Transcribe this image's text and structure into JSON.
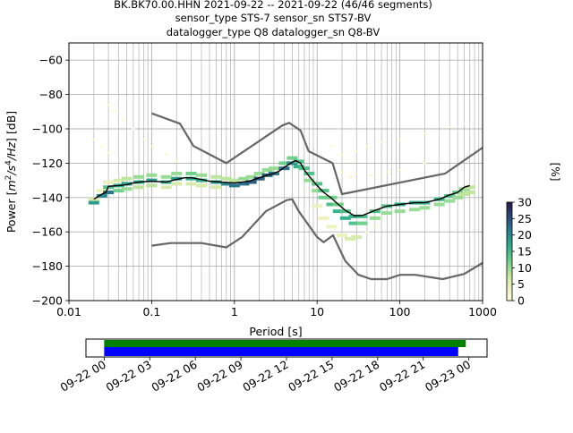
{
  "chart_data": {
    "type": "heatmap",
    "title_lines": [
      "BK.BK70.00.HHN   2021-09-22 -- 2021-09-22  (46/46 segments)",
      "sensor_type STS-7 sensor_sn STS7-BV",
      "datalogger_type Q8 datalogger_sn Q8-BV"
    ],
    "xlabel": "Period [s]",
    "ylabel": "Power [m²/s⁴/Hz] [dB]",
    "ylabel_parts": {
      "a": "Power [",
      "b": "m",
      "c": "2",
      "d": "/s",
      "e": "4",
      "f": "/Hz",
      "g": "] [dB]"
    },
    "x_scale": "log",
    "xlim": [
      0.01,
      1000
    ],
    "ylim": [
      -200,
      -50
    ],
    "x_ticks": [
      "0.01",
      "0.1",
      "1",
      "10",
      "100",
      "1000"
    ],
    "y_ticks": [
      "−60",
      "−80",
      "−100",
      "−120",
      "−140",
      "−160",
      "−180",
      "−200"
    ],
    "y_tick_values": [
      -60,
      -80,
      -100,
      -120,
      -140,
      -160,
      -180,
      -200
    ],
    "x_tick_values": [
      0.01,
      0.1,
      1,
      10,
      100,
      1000
    ],
    "grid": true,
    "colorbar": {
      "label": "[%]",
      "min": 0,
      "max": 30,
      "ticks": [
        "0",
        "5",
        "10",
        "15",
        "20",
        "25",
        "30"
      ],
      "tick_values": [
        0,
        5,
        10,
        15,
        20,
        25,
        30
      ]
    },
    "nhnm": [
      [
        0.1,
        -91
      ],
      [
        0.22,
        -97
      ],
      [
        0.32,
        -110
      ],
      [
        0.8,
        -120
      ],
      [
        3.8,
        -98
      ],
      [
        4.6,
        -96.5
      ],
      [
        6.3,
        -101
      ],
      [
        7.9,
        -113
      ],
      [
        15.4,
        -120
      ],
      [
        20,
        -138
      ],
      [
        354,
        -126
      ],
      [
        1000,
        -111
      ]
    ],
    "nlnm": [
      [
        0.1,
        -168
      ],
      [
        0.17,
        -166.5
      ],
      [
        0.4,
        -166.5
      ],
      [
        0.8,
        -169
      ],
      [
        1.24,
        -163
      ],
      [
        2.4,
        -148
      ],
      [
        4.3,
        -141.5
      ],
      [
        5,
        -141
      ],
      [
        6,
        -148
      ],
      [
        10,
        -163
      ],
      [
        12,
        -166
      ],
      [
        15.6,
        -162
      ],
      [
        21.9,
        -177
      ],
      [
        31.6,
        -185
      ],
      [
        45,
        -187.5
      ],
      [
        70,
        -187.5
      ],
      [
        101,
        -185
      ],
      [
        154,
        -185
      ],
      [
        328,
        -187.5
      ],
      [
        600,
        -184.5
      ],
      [
        1000,
        -178
      ]
    ],
    "mean": [
      [
        0.02,
        -141
      ],
      [
        0.025,
        -138
      ],
      [
        0.028,
        -137
      ],
      [
        0.03,
        -133.5
      ],
      [
        0.04,
        -133
      ],
      [
        0.05,
        -132.5
      ],
      [
        0.06,
        -131.5
      ],
      [
        0.07,
        -131
      ],
      [
        0.1,
        -130.5
      ],
      [
        0.15,
        -131
      ],
      [
        0.2,
        -129.5
      ],
      [
        0.25,
        -128.5
      ],
      [
        0.3,
        -128.5
      ],
      [
        0.4,
        -129.5
      ],
      [
        0.5,
        -130.5
      ],
      [
        0.7,
        -131
      ],
      [
        1,
        -131.5
      ],
      [
        1.5,
        -130.5
      ],
      [
        2,
        -128.5
      ],
      [
        2.5,
        -127
      ],
      [
        3,
        -126
      ],
      [
        3.5,
        -124.5
      ],
      [
        4,
        -122.5
      ],
      [
        5,
        -119.5
      ],
      [
        5.5,
        -118.5
      ],
      [
        6.3,
        -120
      ],
      [
        7,
        -124
      ],
      [
        8,
        -127.5
      ],
      [
        10,
        -133
      ],
      [
        12,
        -137
      ],
      [
        15,
        -140.5
      ],
      [
        18,
        -144
      ],
      [
        22,
        -147.5
      ],
      [
        28,
        -150.5
      ],
      [
        35,
        -150.5
      ],
      [
        50,
        -147.5
      ],
      [
        70,
        -145
      ],
      [
        100,
        -144
      ],
      [
        150,
        -143
      ],
      [
        200,
        -143
      ],
      [
        300,
        -141
      ],
      [
        400,
        -138.5
      ],
      [
        500,
        -137
      ],
      [
        600,
        -134
      ],
      [
        700,
        -133
      ]
    ],
    "samples": [
      [
        0.02,
        -141,
        6
      ],
      [
        0.02,
        -143,
        18
      ],
      [
        0.025,
        -136,
        4
      ],
      [
        0.025,
        -139,
        20
      ],
      [
        0.03,
        -131,
        4
      ],
      [
        0.03,
        -134,
        14
      ],
      [
        0.03,
        -137,
        22
      ],
      [
        0.04,
        -130,
        6
      ],
      [
        0.04,
        -133,
        16
      ],
      [
        0.04,
        -136,
        12
      ],
      [
        0.05,
        -129,
        8
      ],
      [
        0.05,
        -132,
        18
      ],
      [
        0.05,
        -135,
        10
      ],
      [
        0.07,
        -128,
        10
      ],
      [
        0.07,
        -131,
        16
      ],
      [
        0.07,
        -134,
        8
      ],
      [
        0.1,
        -127,
        10
      ],
      [
        0.1,
        -130,
        18
      ],
      [
        0.1,
        -133,
        8
      ],
      [
        0.15,
        -128,
        10
      ],
      [
        0.15,
        -131,
        16
      ],
      [
        0.15,
        -134,
        6
      ],
      [
        0.2,
        -126,
        10
      ],
      [
        0.2,
        -129,
        18
      ],
      [
        0.2,
        -132,
        6
      ],
      [
        0.3,
        -126,
        12
      ],
      [
        0.3,
        -129,
        16
      ],
      [
        0.3,
        -132,
        6
      ],
      [
        0.4,
        -127,
        10
      ],
      [
        0.4,
        -130,
        16
      ],
      [
        0.4,
        -133,
        6
      ],
      [
        0.6,
        -128,
        8
      ],
      [
        0.6,
        -131,
        18
      ],
      [
        0.6,
        -134,
        6
      ],
      [
        0.8,
        -129,
        8
      ],
      [
        0.8,
        -132,
        20
      ],
      [
        1,
        -130,
        8
      ],
      [
        1,
        -133,
        22
      ],
      [
        1.3,
        -129,
        10
      ],
      [
        1.3,
        -132,
        22
      ],
      [
        1.6,
        -128,
        10
      ],
      [
        1.6,
        -131,
        24
      ],
      [
        2,
        -126,
        10
      ],
      [
        2,
        -129,
        24
      ],
      [
        2.5,
        -124,
        10
      ],
      [
        2.5,
        -127,
        24
      ],
      [
        3,
        -123,
        10
      ],
      [
        3,
        -126,
        22
      ],
      [
        4,
        -120,
        12
      ],
      [
        4,
        -123,
        22
      ],
      [
        5,
        -117,
        12
      ],
      [
        5,
        -120,
        20
      ],
      [
        6,
        -119,
        14
      ],
      [
        6,
        -122,
        16
      ],
      [
        7,
        -123,
        14
      ],
      [
        8,
        -126,
        14
      ],
      [
        8,
        -130,
        10
      ],
      [
        10,
        -132,
        14
      ],
      [
        10,
        -136,
        10
      ],
      [
        12,
        -136,
        14
      ],
      [
        12,
        -140,
        12
      ],
      [
        15,
        -140,
        12
      ],
      [
        15,
        -144,
        14
      ],
      [
        18,
        -144,
        12
      ],
      [
        18,
        -148,
        16
      ],
      [
        22,
        -148,
        14
      ],
      [
        22,
        -152,
        16
      ],
      [
        28,
        -151,
        16
      ],
      [
        28,
        -155,
        14
      ],
      [
        35,
        -151,
        14
      ],
      [
        35,
        -155,
        12
      ],
      [
        50,
        -148,
        14
      ],
      [
        50,
        -152,
        10
      ],
      [
        70,
        -145,
        14
      ],
      [
        70,
        -149,
        10
      ],
      [
        100,
        -144,
        16
      ],
      [
        100,
        -148,
        10
      ],
      [
        150,
        -143,
        16
      ],
      [
        150,
        -147,
        10
      ],
      [
        200,
        -143,
        16
      ],
      [
        200,
        -146,
        10
      ],
      [
        300,
        -141,
        16
      ],
      [
        300,
        -144,
        10
      ],
      [
        400,
        -139,
        14
      ],
      [
        400,
        -142,
        10
      ],
      [
        500,
        -137,
        12
      ],
      [
        500,
        -140,
        10
      ],
      [
        600,
        -135,
        10
      ],
      [
        600,
        -138,
        8
      ],
      [
        700,
        -134,
        8
      ],
      [
        700,
        -137,
        8
      ],
      [
        0.03,
        -86,
        1
      ],
      [
        0.035,
        -90,
        1
      ],
      [
        0.045,
        -95,
        1
      ],
      [
        0.06,
        -100,
        1
      ],
      [
        0.08,
        -106,
        1
      ],
      [
        0.1,
        -110,
        1
      ],
      [
        0.15,
        -115,
        1
      ],
      [
        0.2,
        -119,
        1
      ],
      [
        0.02,
        -106,
        1
      ],
      [
        0.025,
        -110,
        1
      ],
      [
        0.03,
        -114,
        1
      ],
      [
        15,
        -110,
        1
      ],
      [
        20,
        -115,
        1
      ],
      [
        25,
        -118,
        1
      ],
      [
        30,
        -113,
        1
      ],
      [
        40,
        -110,
        1
      ],
      [
        60,
        -108,
        1
      ],
      [
        100,
        -106,
        1
      ],
      [
        200,
        -103,
        1
      ],
      [
        400,
        -99,
        1
      ],
      [
        600,
        -97,
        1
      ],
      [
        20,
        -125,
        2
      ],
      [
        25,
        -128,
        2
      ],
      [
        30,
        -126,
        2
      ],
      [
        45,
        -127,
        2
      ],
      [
        70,
        -125,
        2
      ],
      [
        100,
        -124,
        2
      ],
      [
        200,
        -120,
        2
      ],
      [
        20,
        -162,
        4
      ],
      [
        25,
        -164,
        6
      ],
      [
        30,
        -163,
        6
      ],
      [
        12,
        -152,
        4
      ],
      [
        15,
        -157,
        4
      ],
      [
        10,
        -145,
        4
      ],
      [
        40,
        -160,
        2
      ],
      [
        50,
        -157,
        2
      ]
    ],
    "time_axis": {
      "ticks": [
        "09-22 00",
        "09-22 03",
        "09-22 06",
        "09-22 09",
        "09-22 12",
        "09-22 15",
        "09-22 18",
        "09-22 21",
        "09-23 00"
      ],
      "tick_hours": [
        0,
        3,
        6,
        9,
        12,
        15,
        18,
        21,
        24
      ],
      "range_hours": [
        -1.2,
        25.2
      ],
      "bars": [
        {
          "start_hour": 0,
          "end_hour": 23.8,
          "color": "#008000"
        },
        {
          "start_hour": 0,
          "end_hour": 23.3,
          "color": "#0000ff"
        }
      ]
    },
    "colors": {
      "model_lines": "#666666",
      "mean_line": "#000000",
      "grid": "#b0b0b0"
    }
  }
}
